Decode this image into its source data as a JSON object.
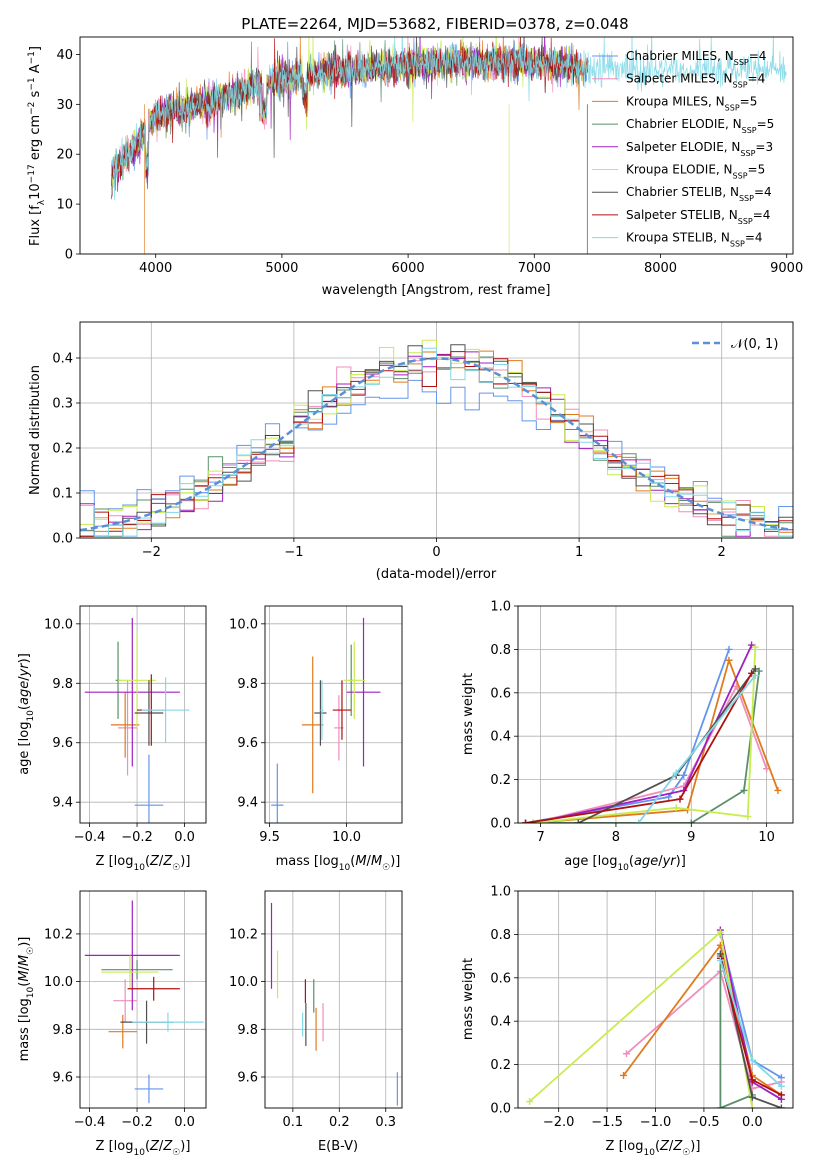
{
  "title": "PLATE=2264, MJD=53682, FIBERID=0378, z=0.048",
  "palette": [
    "#6495ed",
    "#f08ebc",
    "#e07a1f",
    "#5b8f6b",
    "#a020c0",
    "#c8ec50",
    "#505050",
    "#b01010",
    "#80d8e8"
  ],
  "chart_data": [
    {
      "id": "spectrum",
      "type": "line",
      "xlabel": "wavelength [Angstrom, rest frame]",
      "ylabel": "Flux [fλ10^-17 erg cm^-2 s^-1 A^-1]",
      "xlim": [
        3400,
        9050
      ],
      "ylim": [
        0,
        43.5
      ],
      "xticks": [
        4000,
        5000,
        6000,
        7000,
        8000,
        9000
      ],
      "yticks": [
        0,
        10,
        20,
        30,
        40
      ],
      "continuum": [
        [
          3650,
          16
        ],
        [
          3750,
          19
        ],
        [
          3850,
          22
        ],
        [
          3920,
          25
        ],
        [
          4000,
          28
        ],
        [
          4200,
          29
        ],
        [
          4500,
          31
        ],
        [
          4800,
          34
        ],
        [
          5200,
          36
        ],
        [
          5600,
          37
        ],
        [
          6000,
          38
        ],
        [
          6400,
          38.5
        ],
        [
          6800,
          38.5
        ],
        [
          7200,
          38
        ],
        [
          7400,
          37
        ]
      ],
      "legend": [
        {
          "name": "Chabrier MILES, N_SSP=4",
          "base": "Chabrier MILES, N",
          "sub": "SSP",
          "tail": "=4"
        },
        {
          "name": "Salpeter MILES, N_SSP=4",
          "base": "Salpeter MILES, N",
          "sub": "SSP",
          "tail": "=4"
        },
        {
          "name": "Kroupa MILES, N_SSP=5",
          "base": "Kroupa MILES, N",
          "sub": "SSP",
          "tail": "=5"
        },
        {
          "name": "Chabrier ELODIE, N_SSP=5",
          "base": "Chabrier ELODIE, N",
          "sub": "SSP",
          "tail": "=5"
        },
        {
          "name": "Salpeter ELODIE, N_SSP=3",
          "base": "Salpeter ELODIE, N",
          "sub": "SSP",
          "tail": "=3"
        },
        {
          "name": "Kroupa ELODIE, N_SSP=5",
          "base": "Kroupa ELODIE, N",
          "sub": "SSP",
          "tail": "=5"
        },
        {
          "name": "Chabrier STELIB, N_SSP=4",
          "base": "Chabrier STELIB, N",
          "sub": "SSP",
          "tail": "=4"
        },
        {
          "name": "Salpeter STELIB, N_SSP=4",
          "base": "Salpeter STELIB, N",
          "sub": "SSP",
          "tail": "=4"
        },
        {
          "name": "Kroupa STELIB, N_SSP=4",
          "base": "Kroupa STELIB, N",
          "sub": "SSP",
          "tail": "=4"
        }
      ],
      "legend_position": "right"
    },
    {
      "id": "residuals",
      "type": "step",
      "xlabel": "(data-model)/error",
      "ylabel": "Normed distribution",
      "xlim": [
        -2.5,
        2.5
      ],
      "ylim": [
        0,
        0.48
      ],
      "xticks": [
        -2,
        -1,
        0,
        1,
        2
      ],
      "yticks": [
        0.0,
        0.1,
        0.2,
        0.3,
        0.4
      ],
      "reference": {
        "name": "𝒩(0, 1)",
        "mean": 0,
        "sigma": 1
      },
      "legend_position": "top-right"
    },
    {
      "id": "age_vs_z",
      "type": "errorbar",
      "xlabel": "Z [log10(Z/Z☉)]",
      "ylabel": "age  [log10(age/yr)]",
      "xlim": [
        -0.44,
        0.09
      ],
      "ylim": [
        9.33,
        10.06
      ],
      "xticks": [
        -0.4,
        -0.2,
        0.0
      ],
      "yticks": [
        9.4,
        9.6,
        9.8,
        10.0
      ],
      "points": [
        {
          "x": -0.15,
          "xe": 0.06,
          "y": 9.39,
          "ye": 0.17
        },
        {
          "x": -0.24,
          "xe": 0.04,
          "y": 9.65,
          "ye": 0.16
        },
        {
          "x": -0.25,
          "xe": 0.06,
          "y": 9.66,
          "ye": 0.11
        },
        {
          "x": -0.28,
          "xe": 0.01,
          "y": 9.81,
          "ye": 0.13
        },
        {
          "x": -0.22,
          "xe": 0.2,
          "y": 9.77,
          "ye": 0.25
        },
        {
          "x": -0.2,
          "xe": 0.08,
          "y": 9.81,
          "ye": 0.16
        },
        {
          "x": -0.15,
          "xe": 0.06,
          "y": 9.7,
          "ye": 0.11
        },
        {
          "x": -0.14,
          "xe": 0.06,
          "y": 9.71,
          "ye": 0.12
        },
        {
          "x": -0.08,
          "xe": 0.1,
          "y": 9.71,
          "ye": 0.11
        }
      ]
    },
    {
      "id": "age_vs_mass",
      "type": "errorbar",
      "xlabel": "mass [log10(M/M☉)]",
      "ylabel": "",
      "xlim": [
        9.47,
        10.36
      ],
      "ylim": [
        9.33,
        10.06
      ],
      "xticks": [
        9.5,
        10.0
      ],
      "yticks": [
        9.4,
        9.6,
        9.8,
        10.0
      ],
      "points": [
        {
          "x": 9.55,
          "xe": 0.04,
          "y": 9.39,
          "ye": 0.14
        },
        {
          "x": 9.95,
          "xe": 0.03,
          "y": 9.65,
          "ye": 0.11
        },
        {
          "x": 9.78,
          "xe": 0.07,
          "y": 9.66,
          "ye": 0.23
        },
        {
          "x": 10.03,
          "xe": 0.01,
          "y": 9.81,
          "ye": 0.12
        },
        {
          "x": 10.11,
          "xe": 0.11,
          "y": 9.77,
          "ye": 0.25
        },
        {
          "x": 10.05,
          "xe": 0.07,
          "y": 9.81,
          "ye": 0.13
        },
        {
          "x": 9.83,
          "xe": 0.04,
          "y": 9.7,
          "ye": 0.11
        },
        {
          "x": 9.97,
          "xe": 0.06,
          "y": 9.71,
          "ye": 0.1
        },
        {
          "x": 9.84,
          "xe": 0.01,
          "y": 9.71,
          "ye": 0.1
        }
      ]
    },
    {
      "id": "massweight_vs_age",
      "type": "line",
      "xlabel": "age  [log10(age/yr)]",
      "ylabel": "mass weight",
      "xlim": [
        6.7,
        10.35
      ],
      "ylim": [
        0,
        1.0
      ],
      "xticks": [
        7,
        8,
        9,
        10
      ],
      "yticks": [
        0.0,
        0.2,
        0.4,
        0.6,
        0.8,
        1.0
      ],
      "series": [
        {
          "x": [
            6.8,
            8.7,
            8.9,
            9.5
          ],
          "y": [
            0.0,
            0.12,
            0.22,
            0.8
          ]
        },
        {
          "x": [
            6.9,
            8.9,
            9.6,
            10.0
          ],
          "y": [
            0.0,
            0.17,
            0.63,
            0.25
          ]
        },
        {
          "x": [
            6.9,
            8.95,
            9.5,
            10.15
          ],
          "y": [
            0.0,
            0.06,
            0.75,
            0.15
          ]
        },
        {
          "x": [
            6.8,
            9.0,
            9.7,
            9.9
          ],
          "y": [
            0.0,
            0.0,
            0.15,
            0.7
          ]
        },
        {
          "x": [
            6.9,
            8.9,
            9.8
          ],
          "y": [
            0.0,
            0.15,
            0.82
          ]
        },
        {
          "x": [
            6.9,
            8.8,
            9.75,
            9.85
          ],
          "y": [
            0.0,
            0.07,
            0.03,
            0.81
          ]
        },
        {
          "x": [
            7.5,
            8.8,
            9.85
          ],
          "y": [
            0.0,
            0.22,
            0.71
          ]
        },
        {
          "x": [
            6.8,
            8.85,
            9.8
          ],
          "y": [
            0.0,
            0.11,
            0.69
          ]
        },
        {
          "x": [
            8.3,
            8.8,
            9.85
          ],
          "y": [
            0.0,
            0.23,
            0.68
          ]
        }
      ]
    },
    {
      "id": "mass_vs_z",
      "type": "errorbar",
      "xlabel": "Z [log10(Z/Z☉)]",
      "ylabel": "mass [log10(M/M☉)]",
      "xlim": [
        -0.44,
        0.09
      ],
      "ylim": [
        9.47,
        10.38
      ],
      "xticks": [
        -0.4,
        -0.2,
        0.0
      ],
      "yticks": [
        9.6,
        9.8,
        10.0,
        10.2
      ],
      "points": [
        {
          "x": -0.15,
          "xe": 0.06,
          "y": 9.55,
          "ye": 0.06
        },
        {
          "x": -0.25,
          "xe": 0.05,
          "y": 9.92,
          "ye": 0.09
        },
        {
          "x": -0.26,
          "xe": 0.06,
          "y": 9.79,
          "ye": 0.07
        },
        {
          "x": -0.2,
          "xe": 0.15,
          "y": 10.05,
          "ye": 0.04
        },
        {
          "x": -0.22,
          "xe": 0.2,
          "y": 10.11,
          "ye": 0.23
        },
        {
          "x": -0.23,
          "xe": 0.12,
          "y": 10.04,
          "ye": 0.07
        },
        {
          "x": -0.16,
          "xe": 0.11,
          "y": 9.83,
          "ye": 0.09
        },
        {
          "x": -0.13,
          "xe": 0.11,
          "y": 9.97,
          "ye": 0.05
        },
        {
          "x": -0.07,
          "xe": 0.15,
          "y": 9.83,
          "ye": 0.04
        }
      ]
    },
    {
      "id": "mass_vs_ebv",
      "type": "errorbar",
      "xlabel": "E(B-V)",
      "ylabel": "",
      "xlim": [
        0.04,
        0.335
      ],
      "ylim": [
        9.47,
        10.38
      ],
      "xticks": [
        0.1,
        0.2,
        0.3
      ],
      "yticks": [
        9.6,
        9.8,
        10.0,
        10.2
      ],
      "points": [
        {
          "x": 0.325,
          "xe": 0.0,
          "y": 9.55,
          "ye": 0.07
        },
        {
          "x": 0.165,
          "xe": 0.0,
          "y": 9.83,
          "ye": 0.08
        },
        {
          "x": 0.15,
          "xe": 0.0,
          "y": 9.8,
          "ye": 0.09
        },
        {
          "x": 0.145,
          "xe": 0.0,
          "y": 9.94,
          "ye": 0.07
        },
        {
          "x": 0.054,
          "xe": 0.0,
          "y": 10.15,
          "ye": 0.18
        },
        {
          "x": 0.067,
          "xe": 0.0,
          "y": 10.03,
          "ye": 0.1
        },
        {
          "x": 0.128,
          "xe": 0.0,
          "y": 9.82,
          "ye": 0.09
        },
        {
          "x": 0.127,
          "xe": 0.0,
          "y": 9.96,
          "ye": 0.05
        },
        {
          "x": 0.121,
          "xe": 0.0,
          "y": 9.82,
          "ye": 0.05
        }
      ]
    },
    {
      "id": "massweight_vs_z",
      "type": "line",
      "xlabel": "Z [log10(Z/Z☉)]",
      "ylabel": "mass weight",
      "xlim": [
        -2.42,
        0.42
      ],
      "ylim": [
        0,
        1.0
      ],
      "xticks": [
        -2.0,
        -1.5,
        -1.0,
        -0.5,
        0.0
      ],
      "yticks": [
        0.0,
        0.2,
        0.4,
        0.6,
        0.8,
        1.0
      ],
      "series": [
        {
          "x": [
            -0.33,
            0.0,
            0.3
          ],
          "y": [
            0.8,
            0.22,
            0.14
          ]
        },
        {
          "x": [
            -1.3,
            -0.33,
            0.0,
            0.3
          ],
          "y": [
            0.25,
            0.63,
            0.09,
            0.12
          ]
        },
        {
          "x": [
            -1.33,
            -0.33,
            0.0,
            0.3
          ],
          "y": [
            0.15,
            0.75,
            0.15,
            0.06
          ]
        },
        {
          "x": [
            -0.33,
            -0.33,
            0.0
          ],
          "y": [
            0.7,
            0.0,
            0.06
          ]
        },
        {
          "x": [
            -0.33,
            0.0,
            0.3
          ],
          "y": [
            0.82,
            0.12,
            0.04
          ]
        },
        {
          "x": [
            -2.3,
            -0.33,
            0.0
          ],
          "y": [
            0.03,
            0.81,
            0.0
          ]
        },
        {
          "x": [
            -0.33,
            0.0,
            0.3
          ],
          "y": [
            0.71,
            0.05,
            0.0
          ]
        },
        {
          "x": [
            -0.33,
            0.0,
            0.3
          ],
          "y": [
            0.69,
            0.13,
            0.06
          ]
        },
        {
          "x": [
            -0.33,
            0.0,
            0.3
          ],
          "y": [
            0.68,
            0.22,
            0.1
          ]
        }
      ]
    }
  ]
}
